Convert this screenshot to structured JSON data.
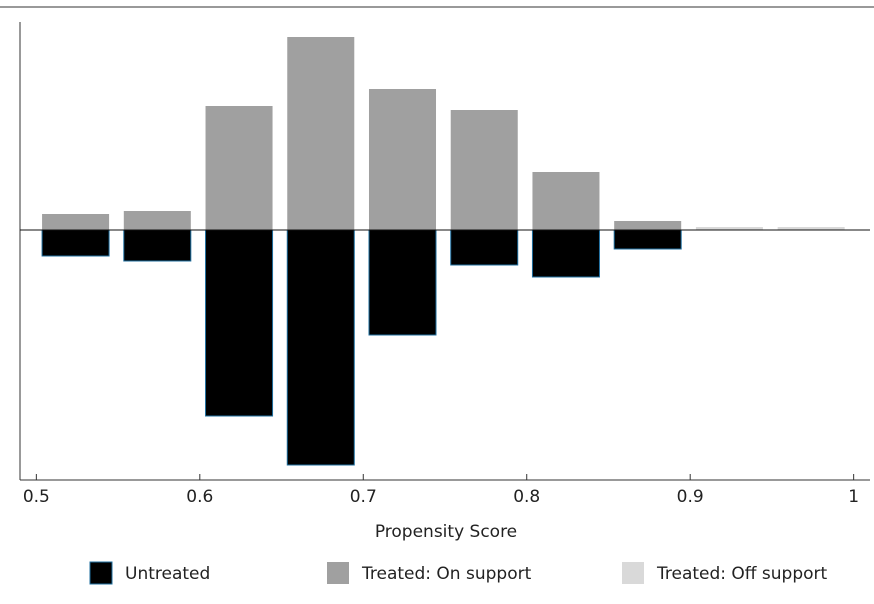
{
  "chart_data": {
    "type": "histogram",
    "x_label": "Propensity Score",
    "bins": [
      0.5,
      0.55,
      0.6,
      0.65,
      0.7,
      0.75,
      0.8,
      0.85,
      0.9,
      0.95,
      1
    ],
    "series": [
      {
        "name": "Untreated",
        "color": "#000000",
        "values": [
          -26,
          -31,
          -186,
          -235,
          -105,
          -35,
          -47,
          -19,
          null,
          null
        ]
      },
      {
        "name": "Treated: On support",
        "color": "#a0a0a0",
        "values": [
          16,
          19,
          124,
          193,
          141,
          120,
          58,
          9,
          null,
          null
        ]
      },
      {
        "name": "Treated: Off support",
        "color": "#d9d9d9",
        "values": [
          null,
          null,
          null,
          null,
          null,
          null,
          null,
          null,
          3,
          3
        ]
      }
    ],
    "xlim": [
      0.49,
      1.01
    ],
    "ylim": [
      -250,
      208
    ],
    "xticks": [
      0.5,
      0.6,
      0.7,
      0.8,
      0.9,
      1
    ]
  }
}
